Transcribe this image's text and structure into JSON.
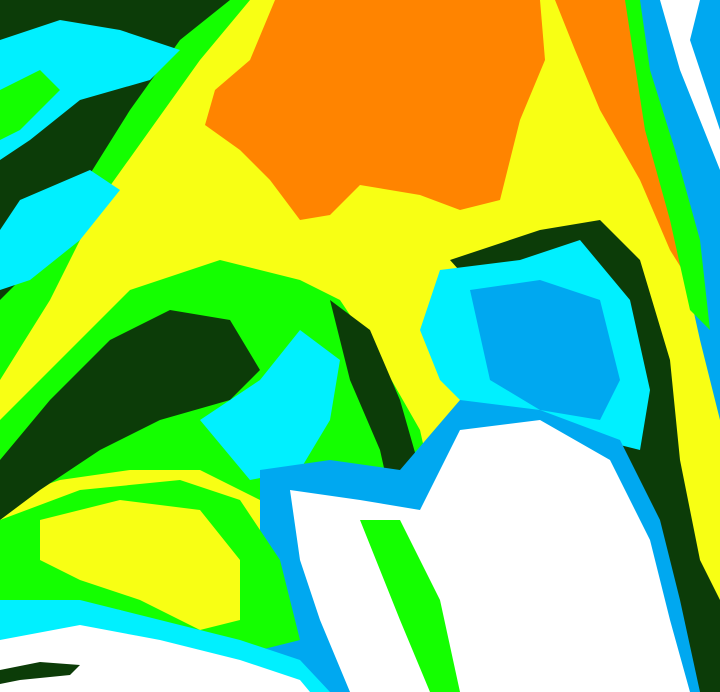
{
  "image": {
    "kind": "false-color classified satellite imagery",
    "palette": {
      "orange": "#ff8400",
      "yellow": "#f8ff14",
      "green": "#14ff00",
      "dark_green": "#0c3c08",
      "cyan": "#00f0ff",
      "light_blue": "#00a8f0",
      "white": "#ffffff"
    }
  }
}
